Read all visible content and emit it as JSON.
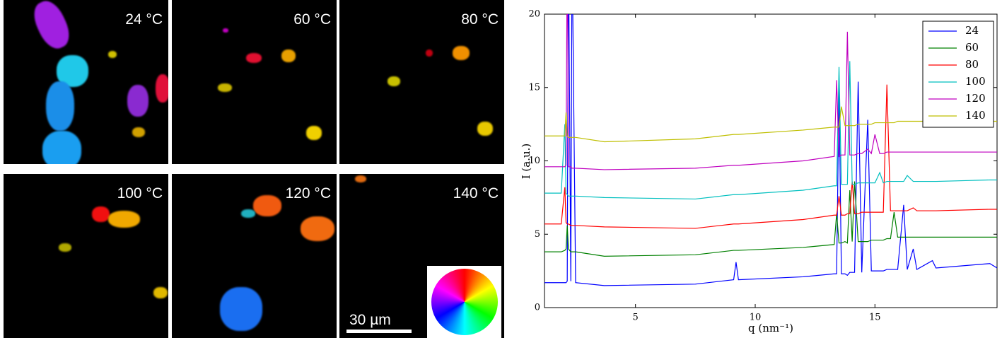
{
  "panels": [
    {
      "label": "24 °C"
    },
    {
      "label": "60 °C"
    },
    {
      "label": "80 °C"
    },
    {
      "label": "100 °C"
    },
    {
      "label": "120 °C"
    },
    {
      "label": "140 °C"
    }
  ],
  "scale_bar": "30 µm",
  "chart_data": {
    "type": "line",
    "xlabel": "q (nm⁻¹)",
    "ylabel": "I (a.u.)",
    "x": [
      1.2,
      1.9,
      2.05,
      2.1,
      2.15,
      2.2,
      2.3,
      2.35,
      2.5,
      3.7,
      7.5,
      9.1,
      9.2,
      9.3,
      12,
      13.3,
      13.4,
      13.5,
      13.6,
      13.75,
      13.85,
      13.95,
      14.05,
      14.15,
      14.3,
      14.45,
      14.7,
      14.85,
      15.0,
      15.2,
      15.35,
      15.5,
      15.65,
      15.8,
      15.95,
      16.2,
      16.35,
      16.6,
      16.75,
      17.4,
      17.55,
      19.8,
      20.1
    ],
    "series": [
      {
        "name": "24",
        "color": "#0000ff",
        "values": [
          1.7,
          1.7,
          1.7,
          1.7,
          1.8,
          25,
          1.8,
          25,
          1.7,
          1.5,
          1.6,
          1.9,
          3.1,
          1.9,
          2.1,
          2.3,
          2.3,
          15,
          2.3,
          2.3,
          2.2,
          2.4,
          2.4,
          2.4,
          15.4,
          2.4,
          12.8,
          2.5,
          2.5,
          2.5,
          2.5,
          2.6,
          2.6,
          2.6,
          2.6,
          7.0,
          2.6,
          4.0,
          2.6,
          3.2,
          2.7,
          3.0,
          2.7
        ]
      },
      {
        "name": "60",
        "color": "#008000",
        "values": [
          3.8,
          3.8,
          3.9,
          4.0,
          5.6,
          4.0,
          3.8,
          3.8,
          3.8,
          3.5,
          3.6,
          3.9,
          3.9,
          3.9,
          4.1,
          4.3,
          6.4,
          4.4,
          4.4,
          4.5,
          4.4,
          8.0,
          4.5,
          8.6,
          4.5,
          4.5,
          4.5,
          4.6,
          4.6,
          4.6,
          4.6,
          4.7,
          4.7,
          6.5,
          4.8,
          4.8,
          4.8,
          4.8,
          4.8,
          4.8,
          4.8,
          4.8,
          4.8
        ]
      },
      {
        "name": "80",
        "color": "#ff0000",
        "values": [
          5.7,
          5.7,
          8.2,
          5.8,
          5.7,
          5.7,
          5.6,
          5.6,
          5.6,
          5.5,
          5.4,
          5.7,
          5.7,
          5.7,
          6.0,
          6.3,
          6.3,
          7.6,
          6.3,
          6.3,
          6.4,
          6.4,
          8.6,
          6.4,
          6.4,
          6.5,
          6.5,
          6.5,
          6.5,
          6.5,
          6.5,
          15.2,
          6.6,
          6.6,
          6.6,
          6.6,
          6.6,
          6.8,
          6.6,
          6.6,
          6.6,
          6.7,
          6.7
        ]
      },
      {
        "name": "100",
        "color": "#00bfbf",
        "values": [
          7.8,
          7.8,
          12.5,
          7.8,
          7.7,
          7.6,
          7.6,
          7.6,
          7.6,
          7.5,
          7.4,
          7.7,
          7.7,
          7.7,
          8.0,
          8.3,
          8.3,
          16.4,
          8.4,
          8.4,
          8.4,
          16.8,
          8.4,
          8.4,
          8.5,
          8.5,
          8.5,
          8.5,
          8.5,
          9.2,
          8.5,
          8.6,
          8.6,
          8.6,
          8.6,
          8.6,
          9.0,
          8.6,
          8.6,
          8.6,
          8.6,
          8.7,
          8.7
        ]
      },
      {
        "name": "120",
        "color": "#bf00bf",
        "values": [
          9.6,
          9.6,
          9.6,
          9.7,
          25,
          9.6,
          9.6,
          9.5,
          9.5,
          9.4,
          9.5,
          9.7,
          9.7,
          9.7,
          10.0,
          10.3,
          15.5,
          10.3,
          10.4,
          10.4,
          18.8,
          10.4,
          10.4,
          10.4,
          10.5,
          10.5,
          10.8,
          10.5,
          11.8,
          10.5,
          10.5,
          10.6,
          10.6,
          10.6,
          10.6,
          10.6,
          10.6,
          10.6,
          10.6,
          10.6,
          10.6,
          10.6,
          10.6
        ]
      },
      {
        "name": "140",
        "color": "#bfbf00",
        "values": [
          11.7,
          11.7,
          11.7,
          13.3,
          11.7,
          11.6,
          11.6,
          11.6,
          11.6,
          11.3,
          11.5,
          11.8,
          11.8,
          11.8,
          12.1,
          12.3,
          12.3,
          12.3,
          13.7,
          12.4,
          12.4,
          12.4,
          12.4,
          12.4,
          12.5,
          12.5,
          12.5,
          12.5,
          12.6,
          12.6,
          12.6,
          12.6,
          12.6,
          12.6,
          12.7,
          12.7,
          12.7,
          12.7,
          12.7,
          12.7,
          12.7,
          12.7,
          12.7
        ]
      }
    ],
    "xlim": [
      1.2,
      20.1
    ],
    "ylim": [
      0,
      20
    ],
    "xticks": [
      5,
      10,
      15
    ],
    "yticks": [
      0,
      5,
      10,
      15,
      20
    ],
    "legend": "upper right"
  }
}
